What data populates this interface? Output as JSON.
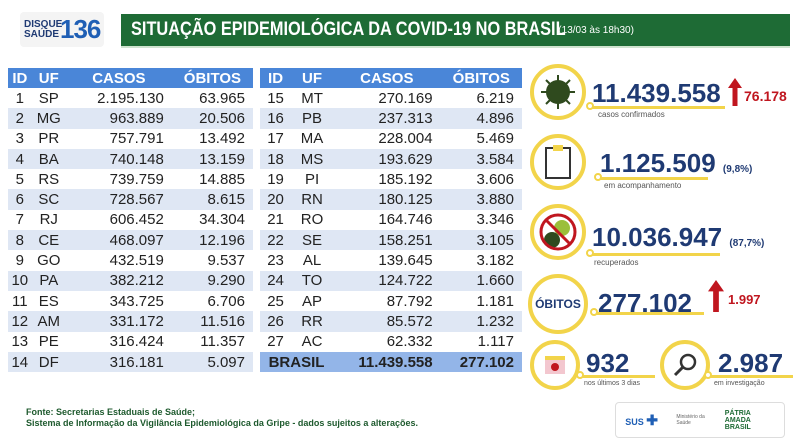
{
  "header": {
    "logo_line1": "DISQUE",
    "logo_line2": "SAÚDE",
    "logo_number": "136",
    "title": "SITUAÇÃO EPIDEMIOLÓGICA DA COVID-19 NO BRASIL",
    "date": "(13/03 às 18h30)"
  },
  "table_columns": [
    "ID",
    "UF",
    "CASOS",
    "ÓBITOS"
  ],
  "table_left": [
    [
      "1",
      "SP",
      "2.195.130",
      "63.965"
    ],
    [
      "2",
      "MG",
      "963.889",
      "20.506"
    ],
    [
      "3",
      "PR",
      "757.791",
      "13.492"
    ],
    [
      "4",
      "BA",
      "740.148",
      "13.159"
    ],
    [
      "5",
      "RS",
      "739.759",
      "14.885"
    ],
    [
      "6",
      "SC",
      "728.567",
      "8.615"
    ],
    [
      "7",
      "RJ",
      "606.452",
      "34.304"
    ],
    [
      "8",
      "CE",
      "468.097",
      "12.196"
    ],
    [
      "9",
      "GO",
      "432.519",
      "9.537"
    ],
    [
      "10",
      "PA",
      "382.212",
      "9.290"
    ],
    [
      "11",
      "ES",
      "343.725",
      "6.706"
    ],
    [
      "12",
      "AM",
      "331.172",
      "11.516"
    ],
    [
      "13",
      "PE",
      "316.424",
      "11.357"
    ],
    [
      "14",
      "DF",
      "316.181",
      "5.097"
    ]
  ],
  "table_right": [
    [
      "15",
      "MT",
      "270.169",
      "6.219"
    ],
    [
      "16",
      "PB",
      "237.313",
      "4.896"
    ],
    [
      "17",
      "MA",
      "228.004",
      "5.469"
    ],
    [
      "18",
      "MS",
      "193.629",
      "3.584"
    ],
    [
      "19",
      "PI",
      "185.192",
      "3.606"
    ],
    [
      "20",
      "RN",
      "180.125",
      "3.880"
    ],
    [
      "21",
      "RO",
      "164.746",
      "3.346"
    ],
    [
      "22",
      "SE",
      "158.251",
      "3.105"
    ],
    [
      "23",
      "AL",
      "139.645",
      "3.182"
    ],
    [
      "24",
      "TO",
      "124.722",
      "1.660"
    ],
    [
      "25",
      "AP",
      "87.792",
      "1.181"
    ],
    [
      "26",
      "RR",
      "85.572",
      "1.232"
    ],
    [
      "27",
      "AC",
      "62.332",
      "1.117"
    ]
  ],
  "total": {
    "label": "BRASIL",
    "casos": "11.439.558",
    "obitos": "277.102"
  },
  "stats": {
    "confirmed": {
      "value": "11.439.558",
      "increase": "76.178",
      "label": "casos confirmados",
      "icon": "virus-icon"
    },
    "monitoring": {
      "value": "1.125.509",
      "pct": "(9,8%)",
      "label": "em acompanhamento",
      "icon": "clipboard-icon"
    },
    "recovered": {
      "value": "10.036.947",
      "pct": "(87,7%)",
      "label": "recuperados",
      "icon": "no-virus-icon"
    },
    "deaths": {
      "badge": "ÓBITOS",
      "value": "277.102",
      "increase": "1.997"
    },
    "last3days": {
      "value": "932",
      "label": "nos últimos 3 dias",
      "icon": "calendar-icon"
    },
    "investigation": {
      "value": "2.987",
      "label": "em investigação",
      "icon": "magnifier-icon"
    }
  },
  "footer": {
    "line1": "Fonte: Secretarias Estaduais de Saúde;",
    "line2": "Sistema de Informação da Vigilância Epidemiológica da Gripe - dados sujeitos a alterações."
  },
  "brand": {
    "sus": "SUS",
    "ministry": "Ministério da Saúde",
    "gov": "PÁTRIA AMADA BRASIL"
  },
  "colors": {
    "title_green": "#1e6b35",
    "table_header": "#4a86d8",
    "ring_yellow": "#f2d44a",
    "number_blue": "#1f3a73",
    "increase_red": "#c0161f"
  }
}
